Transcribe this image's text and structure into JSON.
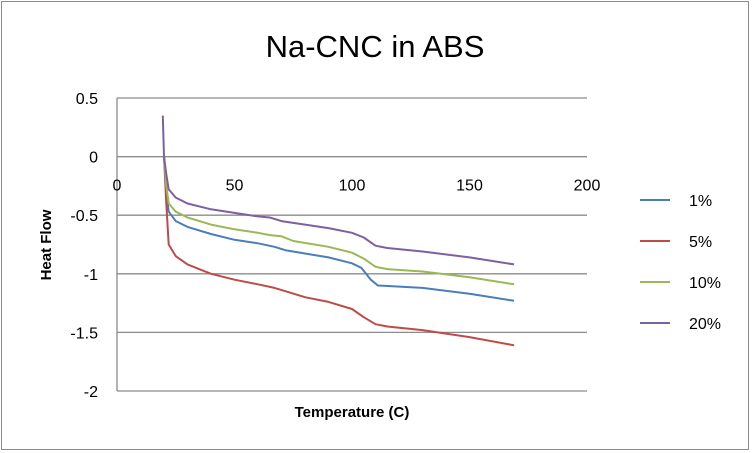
{
  "chart_data": {
    "type": "line",
    "title": "Na-CNC in ABS",
    "xlabel": "Temperature (C)",
    "ylabel": "Heat Flow",
    "xlim": [
      0,
      200
    ],
    "ylim": [
      -2,
      0.5
    ],
    "xticks": [
      0,
      50,
      100,
      150,
      200
    ],
    "yticks": [
      0.5,
      0,
      -0.5,
      -1,
      -1.5,
      -2
    ],
    "xtick_labels": [
      "0",
      "50",
      "100",
      "150",
      "200"
    ],
    "ytick_labels": [
      "0.5",
      "0",
      "-0.5",
      "-1",
      "-1.5",
      "-2"
    ],
    "grid": "horizontal",
    "legend_position": "right",
    "series": [
      {
        "name": "1%",
        "color": "#4a7ebb",
        "points": [
          [
            20,
            0
          ],
          [
            21,
            -0.3
          ],
          [
            22,
            -0.47
          ],
          [
            25,
            -0.55
          ],
          [
            30,
            -0.6
          ],
          [
            40,
            -0.66
          ],
          [
            50,
            -0.71
          ],
          [
            60,
            -0.74
          ],
          [
            67,
            -0.77
          ],
          [
            72,
            -0.8
          ],
          [
            90,
            -0.86
          ],
          [
            100,
            -0.91
          ],
          [
            104,
            -0.95
          ],
          [
            108,
            -1.05
          ],
          [
            111,
            -1.1
          ],
          [
            130,
            -1.12
          ],
          [
            150,
            -1.17
          ],
          [
            169,
            -1.23
          ]
        ]
      },
      {
        "name": "5%",
        "color": "#be4b48",
        "points": [
          [
            20,
            0
          ],
          [
            21,
            -0.4
          ],
          [
            22,
            -0.75
          ],
          [
            25,
            -0.85
          ],
          [
            30,
            -0.92
          ],
          [
            40,
            -1.0
          ],
          [
            50,
            -1.05
          ],
          [
            60,
            -1.09
          ],
          [
            67,
            -1.12
          ],
          [
            72,
            -1.15
          ],
          [
            80,
            -1.2
          ],
          [
            90,
            -1.24
          ],
          [
            100,
            -1.3
          ],
          [
            105,
            -1.37
          ],
          [
            110,
            -1.43
          ],
          [
            115,
            -1.45
          ],
          [
            130,
            -1.48
          ],
          [
            150,
            -1.54
          ],
          [
            169,
            -1.61
          ]
        ]
      },
      {
        "name": "10%",
        "color": "#98b954",
        "points": [
          [
            20,
            0
          ],
          [
            21,
            -0.25
          ],
          [
            22,
            -0.4
          ],
          [
            25,
            -0.47
          ],
          [
            30,
            -0.52
          ],
          [
            40,
            -0.58
          ],
          [
            50,
            -0.62
          ],
          [
            60,
            -0.65
          ],
          [
            65,
            -0.67
          ],
          [
            70,
            -0.68
          ],
          [
            75,
            -0.72
          ],
          [
            90,
            -0.77
          ],
          [
            100,
            -0.82
          ],
          [
            105,
            -0.87
          ],
          [
            110,
            -0.94
          ],
          [
            115,
            -0.96
          ],
          [
            130,
            -0.98
          ],
          [
            150,
            -1.03
          ],
          [
            169,
            -1.09
          ]
        ]
      },
      {
        "name": "20%",
        "color": "#7d60a0",
        "points": [
          [
            19.5,
            0.35
          ],
          [
            20,
            0.0
          ],
          [
            21,
            -0.15
          ],
          [
            22,
            -0.28
          ],
          [
            25,
            -0.35
          ],
          [
            30,
            -0.4
          ],
          [
            40,
            -0.45
          ],
          [
            50,
            -0.48
          ],
          [
            60,
            -0.51
          ],
          [
            65,
            -0.52
          ],
          [
            70,
            -0.55
          ],
          [
            80,
            -0.58
          ],
          [
            90,
            -0.61
          ],
          [
            100,
            -0.65
          ],
          [
            105,
            -0.69
          ],
          [
            110,
            -0.76
          ],
          [
            115,
            -0.78
          ],
          [
            130,
            -0.81
          ],
          [
            150,
            -0.86
          ],
          [
            169,
            -0.92
          ]
        ]
      }
    ]
  }
}
